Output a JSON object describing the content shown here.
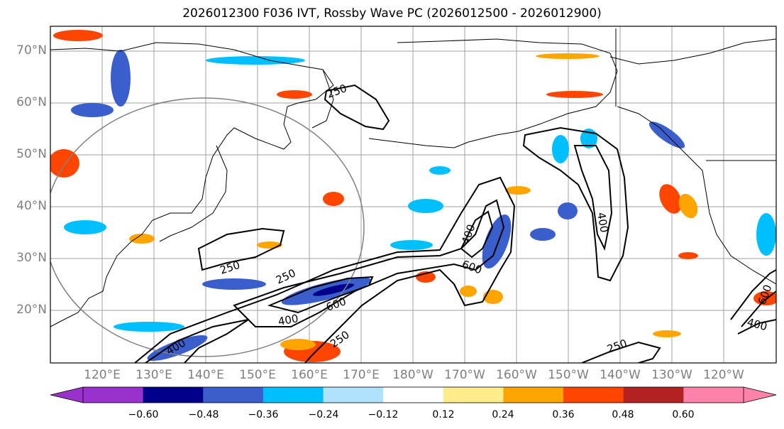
{
  "title": "2026012300 F036 IVT, Rossby Wave PC (2026012500 - 2026012900)",
  "lat_labels": [
    "70°N",
    "60°N",
    "50°N",
    "40°N",
    "30°N",
    "20°N"
  ],
  "lon_labels": [
    "120°E",
    "130°E",
    "140°E",
    "150°E",
    "160°E",
    "170°E",
    "180°W",
    "170°W",
    "160°W",
    "150°W",
    "140°W",
    "130°W",
    "120°W"
  ],
  "contour_labels": [
    "250",
    "250",
    "250",
    "250",
    "400",
    "400",
    "400",
    "400",
    "600",
    "600",
    "600",
    "250",
    "400"
  ],
  "colorbar": {
    "colors": [
      "#9932cc",
      "#00008b",
      "#3a5fcd",
      "#00bfff",
      "#b0e2ff",
      "#ffffff",
      "#ffec8b",
      "#ffa500",
      "#ff4500",
      "#b22222",
      "#ff82ab"
    ],
    "ticks": [
      "−0.60",
      "−0.48",
      "−0.36",
      "−0.24",
      "−0.12",
      "0.12",
      "0.24",
      "0.36",
      "0.48",
      "0.60"
    ]
  },
  "colors": {
    "grid": "#a0a0a0",
    "coast": "#000000",
    "axis_label": "#7f7f7f"
  }
}
